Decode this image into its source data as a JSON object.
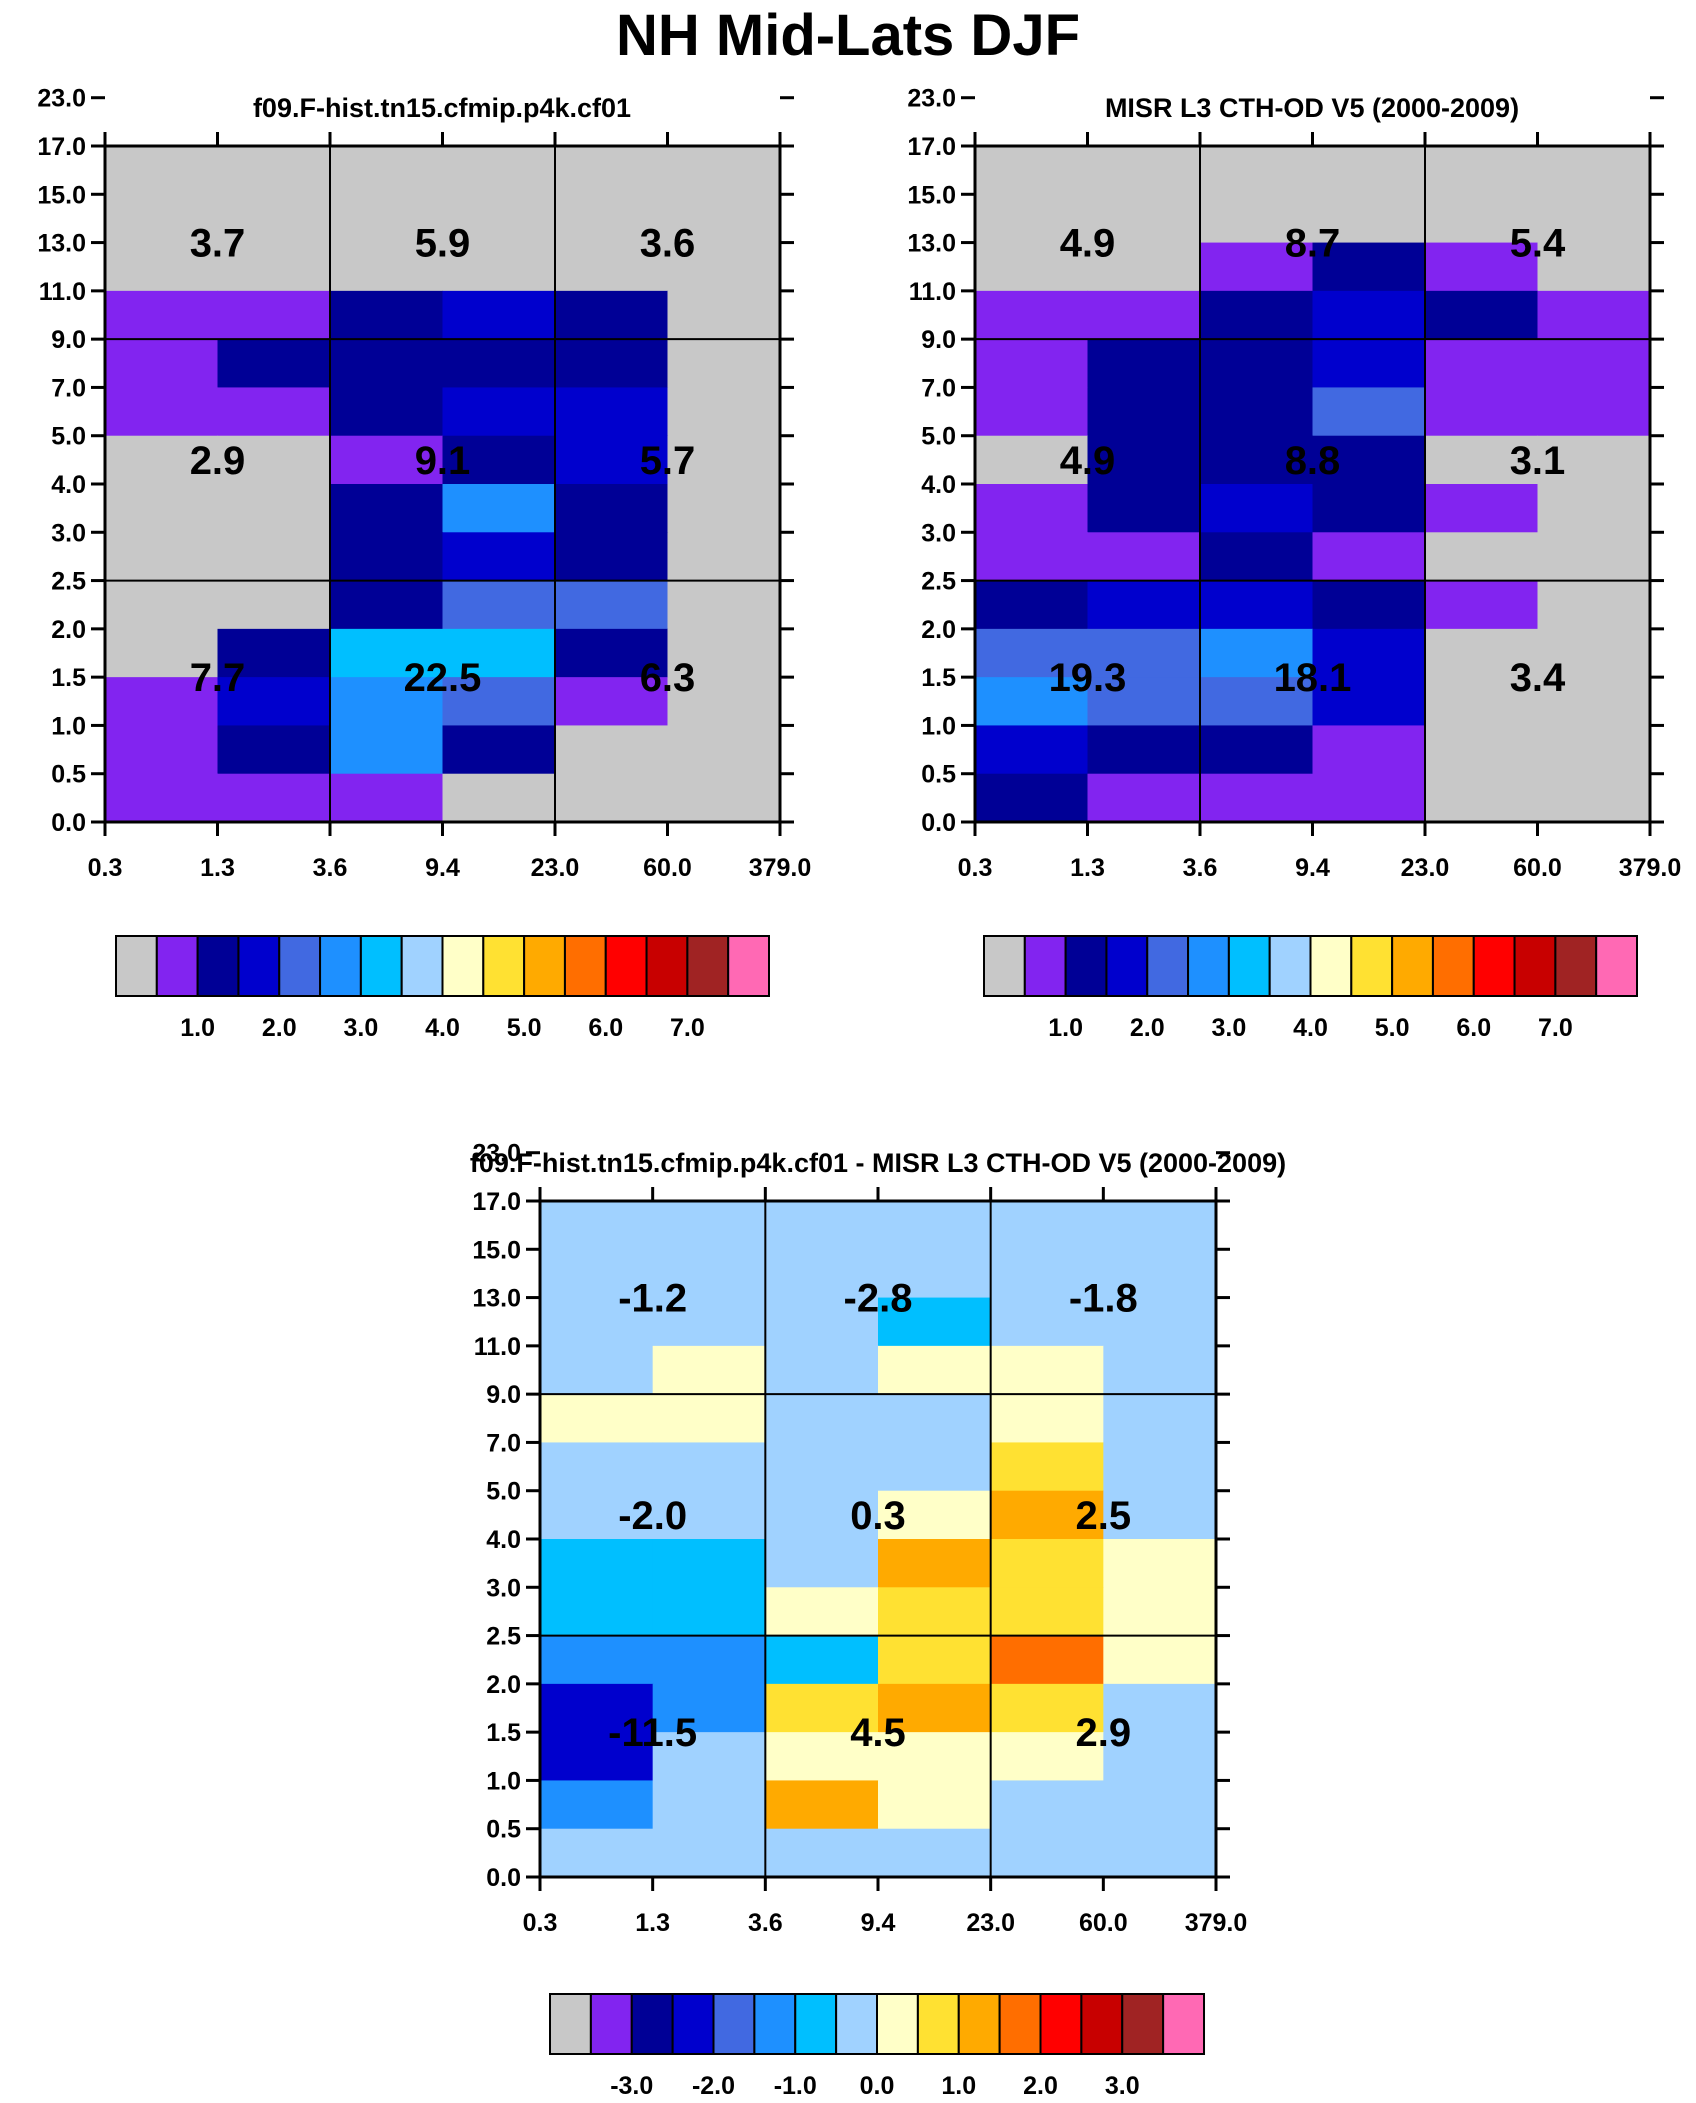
{
  "title": "NH Mid-Lats DJF",
  "palettes": {
    "abs": [
      "#c8c8c8",
      "#8224f0",
      "#000096",
      "#0000cd",
      "#4169e1",
      "#1e90ff",
      "#00bfff",
      "#a0d2ff",
      "#ffffc8",
      "#ffe132",
      "#ffaa00",
      "#ff6e00",
      "#ff0000",
      "#c80000",
      "#a02323",
      "#ff69b4"
    ],
    "diff": [
      "#c8c8c8",
      "#8224f0",
      "#000096",
      "#0000cd",
      "#4169e1",
      "#1e90ff",
      "#00bfff",
      "#a0d2ff",
      "#ffffc8",
      "#ffe132",
      "#ffaa00",
      "#ff6e00",
      "#ff0000",
      "#c80000",
      "#a02323",
      "#ff69b4"
    ]
  },
  "chart_data": [
    {
      "id": "model",
      "type": "heatmap",
      "title": "f09.F-hist.tn15.cfmip.p4k.cf01",
      "x_ticks": [
        "0.3",
        "1.3",
        "3.6",
        "9.4",
        "23.0",
        "60.0",
        "379.0"
      ],
      "y_ticks": [
        "0.0",
        "0.5",
        "1.0",
        "1.5",
        "2.0",
        "2.5",
        "3.0",
        "4.0",
        "5.0",
        "7.0",
        "9.0",
        "11.0",
        "13.0",
        "15.0",
        "17.0",
        "23.0"
      ],
      "palette": "abs",
      "cells_top_to_bottom": [
        [
          0,
          0,
          0,
          0,
          0,
          0
        ],
        [
          0,
          0,
          0,
          0,
          0,
          0
        ],
        [
          0,
          0,
          0,
          0,
          0,
          0
        ],
        [
          1,
          1,
          2,
          3,
          2,
          0
        ],
        [
          1,
          2,
          2,
          2,
          2,
          0
        ],
        [
          1,
          1,
          2,
          3,
          3,
          0
        ],
        [
          0,
          0,
          1,
          2,
          3,
          0
        ],
        [
          0,
          0,
          2,
          5,
          2,
          0
        ],
        [
          0,
          0,
          2,
          3,
          2,
          0
        ],
        [
          0,
          0,
          2,
          4,
          4,
          0
        ],
        [
          0,
          2,
          6,
          6,
          2,
          0
        ],
        [
          1,
          3,
          5,
          4,
          1,
          0
        ],
        [
          1,
          2,
          5,
          2,
          0,
          0
        ],
        [
          1,
          1,
          1,
          0,
          0,
          0
        ]
      ],
      "labels": [
        {
          "text": "3.7",
          "col": 0,
          "row": 0
        },
        {
          "text": "5.9",
          "col": 1,
          "row": 0
        },
        {
          "text": "3.6",
          "col": 2,
          "row": 0
        },
        {
          "text": "2.9",
          "col": 0,
          "row": 1
        },
        {
          "text": "9.1",
          "col": 1,
          "row": 1
        },
        {
          "text": "5.7",
          "col": 2,
          "row": 1
        },
        {
          "text": "7.7",
          "col": 0,
          "row": 2
        },
        {
          "text": "22.5",
          "col": 1,
          "row": 2
        },
        {
          "text": "6.3",
          "col": 2,
          "row": 2
        }
      ],
      "colorbar_labels": [
        "1.0",
        "2.0",
        "3.0",
        "4.0",
        "5.0",
        "6.0",
        "7.0"
      ]
    },
    {
      "id": "obs",
      "type": "heatmap",
      "title": "MISR L3 CTH-OD V5 (2000-2009)",
      "x_ticks": [
        "0.3",
        "1.3",
        "3.6",
        "9.4",
        "23.0",
        "60.0",
        "379.0"
      ],
      "y_ticks": [
        "0.0",
        "0.5",
        "1.0",
        "1.5",
        "2.0",
        "2.5",
        "3.0",
        "4.0",
        "5.0",
        "7.0",
        "9.0",
        "11.0",
        "13.0",
        "15.0",
        "17.0",
        "23.0"
      ],
      "palette": "abs",
      "cells_top_to_bottom": [
        [
          0,
          0,
          0,
          0,
          0,
          0
        ],
        [
          0,
          0,
          0,
          0,
          0,
          0
        ],
        [
          0,
          0,
          1,
          2,
          1,
          0
        ],
        [
          1,
          1,
          2,
          3,
          2,
          1
        ],
        [
          1,
          2,
          2,
          3,
          1,
          1
        ],
        [
          1,
          2,
          2,
          4,
          1,
          1
        ],
        [
          0,
          2,
          2,
          2,
          0,
          0
        ],
        [
          1,
          2,
          3,
          2,
          1,
          0
        ],
        [
          1,
          1,
          2,
          1,
          0,
          0
        ],
        [
          2,
          3,
          3,
          2,
          1,
          0
        ],
        [
          4,
          4,
          5,
          3,
          0,
          0
        ],
        [
          5,
          4,
          4,
          3,
          0,
          0
        ],
        [
          3,
          2,
          2,
          1,
          0,
          0
        ],
        [
          2,
          1,
          1,
          1,
          0,
          0
        ]
      ],
      "labels": [
        {
          "text": "4.9",
          "col": 0,
          "row": 0
        },
        {
          "text": "8.7",
          "col": 1,
          "row": 0
        },
        {
          "text": "5.4",
          "col": 2,
          "row": 0
        },
        {
          "text": "4.9",
          "col": 0,
          "row": 1
        },
        {
          "text": "8.8",
          "col": 1,
          "row": 1
        },
        {
          "text": "3.1",
          "col": 2,
          "row": 1
        },
        {
          "text": "19.3",
          "col": 0,
          "row": 2
        },
        {
          "text": "18.1",
          "col": 1,
          "row": 2
        },
        {
          "text": "3.4",
          "col": 2,
          "row": 2
        }
      ],
      "colorbar_labels": [
        "1.0",
        "2.0",
        "3.0",
        "4.0",
        "5.0",
        "6.0",
        "7.0"
      ]
    },
    {
      "id": "diff",
      "type": "heatmap",
      "title": "f09.F-hist.tn15.cfmip.p4k.cf01 - MISR L3 CTH-OD V5 (2000-2009)",
      "x_ticks": [
        "0.3",
        "1.3",
        "3.6",
        "9.4",
        "23.0",
        "60.0",
        "379.0"
      ],
      "y_ticks": [
        "0.0",
        "0.5",
        "1.0",
        "1.5",
        "2.0",
        "2.5",
        "3.0",
        "4.0",
        "5.0",
        "7.0",
        "9.0",
        "11.0",
        "13.0",
        "15.0",
        "17.0",
        "23.0"
      ],
      "palette": "diff",
      "cells_top_to_bottom": [
        [
          7,
          7,
          7,
          7,
          7,
          7
        ],
        [
          7,
          7,
          7,
          7,
          7,
          7
        ],
        [
          7,
          7,
          7,
          6,
          7,
          7
        ],
        [
          7,
          8,
          7,
          8,
          8,
          7
        ],
        [
          8,
          8,
          7,
          7,
          8,
          7
        ],
        [
          7,
          7,
          7,
          7,
          9,
          7
        ],
        [
          7,
          7,
          7,
          8,
          10,
          7
        ],
        [
          6,
          6,
          7,
          10,
          9,
          8
        ],
        [
          6,
          6,
          8,
          9,
          9,
          8
        ],
        [
          5,
          5,
          6,
          9,
          11,
          8
        ],
        [
          3,
          5,
          9,
          10,
          9,
          7
        ],
        [
          3,
          7,
          8,
          8,
          8,
          7
        ],
        [
          5,
          7,
          10,
          8,
          7,
          7
        ],
        [
          7,
          7,
          7,
          7,
          7,
          7
        ]
      ],
      "labels": [
        {
          "text": "-1.2",
          "col": 0,
          "row": 0
        },
        {
          "text": "-2.8",
          "col": 1,
          "row": 0
        },
        {
          "text": "-1.8",
          "col": 2,
          "row": 0
        },
        {
          "text": "-2.0",
          "col": 0,
          "row": 1
        },
        {
          "text": "0.3",
          "col": 1,
          "row": 1
        },
        {
          "text": "2.5",
          "col": 2,
          "row": 1
        },
        {
          "text": "-11.5",
          "col": 0,
          "row": 2
        },
        {
          "text": "4.5",
          "col": 1,
          "row": 2
        },
        {
          "text": "2.9",
          "col": 2,
          "row": 2
        }
      ],
      "colorbar_labels": [
        "-3.0",
        "-2.0",
        "-1.0",
        "0.0",
        "1.0",
        "2.0",
        "3.0"
      ]
    }
  ]
}
